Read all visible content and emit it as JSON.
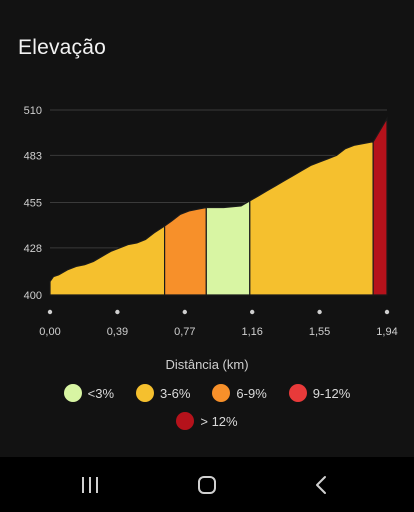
{
  "header": {
    "title": "Elevação"
  },
  "chart_data": {
    "type": "area",
    "xlabel": "Distância (km)",
    "ylabel": "",
    "ylim": [
      400,
      510
    ],
    "xlim": [
      0,
      1.94
    ],
    "y_ticks": [
      "510",
      "483",
      "455",
      "428",
      "400"
    ],
    "x_ticks": [
      "0,00",
      "0,39",
      "0,77",
      "1,16",
      "1,55",
      "1,94"
    ],
    "grid": true,
    "legend_placement": "bottom",
    "profile": {
      "x": [
        0,
        0.02,
        0.05,
        0.1,
        0.15,
        0.2,
        0.25,
        0.3,
        0.35,
        0.4,
        0.45,
        0.5,
        0.55,
        0.6,
        0.66,
        0.7,
        0.75,
        0.8,
        0.85,
        0.9,
        1.0,
        1.1,
        1.15,
        1.2,
        1.25,
        1.3,
        1.35,
        1.4,
        1.45,
        1.5,
        1.55,
        1.6,
        1.65,
        1.7,
        1.75,
        1.8,
        1.85,
        1.86,
        1.9,
        1.94
      ],
      "y": [
        408,
        411,
        412,
        415,
        417,
        418,
        420,
        423,
        426,
        428,
        430,
        431,
        433,
        437,
        441,
        444,
        448,
        450,
        451,
        452,
        452,
        453,
        456,
        459,
        462,
        465,
        468,
        471,
        474,
        477,
        479,
        481,
        483,
        487,
        489,
        490,
        491,
        491,
        498,
        505
      ]
    },
    "segments": [
      {
        "from": 0,
        "to": 0.66,
        "grade": "3-6%"
      },
      {
        "from": 0.66,
        "to": 0.9,
        "grade": "6-9%"
      },
      {
        "from": 0.9,
        "to": 1.15,
        "grade": "<3%"
      },
      {
        "from": 1.15,
        "to": 1.86,
        "grade": "3-6%"
      },
      {
        "from": 1.86,
        "to": 1.94,
        "grade": "> 12%"
      }
    ],
    "legend": [
      {
        "label": "<3%",
        "color": "#d8f5a3"
      },
      {
        "label": "3-6%",
        "color": "#f5c02e"
      },
      {
        "label": "6-9%",
        "color": "#f7902a"
      },
      {
        "label": "9-12%",
        "color": "#e83a3a"
      },
      {
        "label": "> 12%",
        "color": "#b5121b"
      }
    ]
  },
  "colors": {
    "background": "#121212",
    "grid": "#3a3a3a",
    "axis_text": "#cfcfcf",
    "segment_border": "#1a1a1a"
  },
  "navbar": {
    "items": [
      {
        "icon": "recent-apps-icon"
      },
      {
        "icon": "home-icon"
      },
      {
        "icon": "back-icon"
      }
    ]
  }
}
